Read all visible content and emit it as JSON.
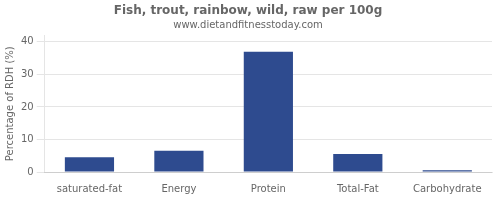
{
  "chart_data": {
    "type": "bar",
    "title": "Fish, trout, rainbow, wild, raw per 100g",
    "subtitle": "www.dietandfitnesstoday.com",
    "categories": [
      "saturated-fat",
      "Energy",
      "Protein",
      "Total-Fat",
      "Carbohydrate"
    ],
    "values": [
      4.5,
      6.5,
      37.0,
      5.5,
      0.5
    ],
    "color": "#2e4b8f",
    "ylabel": "Percentage of RDH (%)",
    "ylim": [
      0,
      42
    ],
    "yticks": [
      0,
      10,
      20,
      30,
      40
    ],
    "grid": true
  }
}
